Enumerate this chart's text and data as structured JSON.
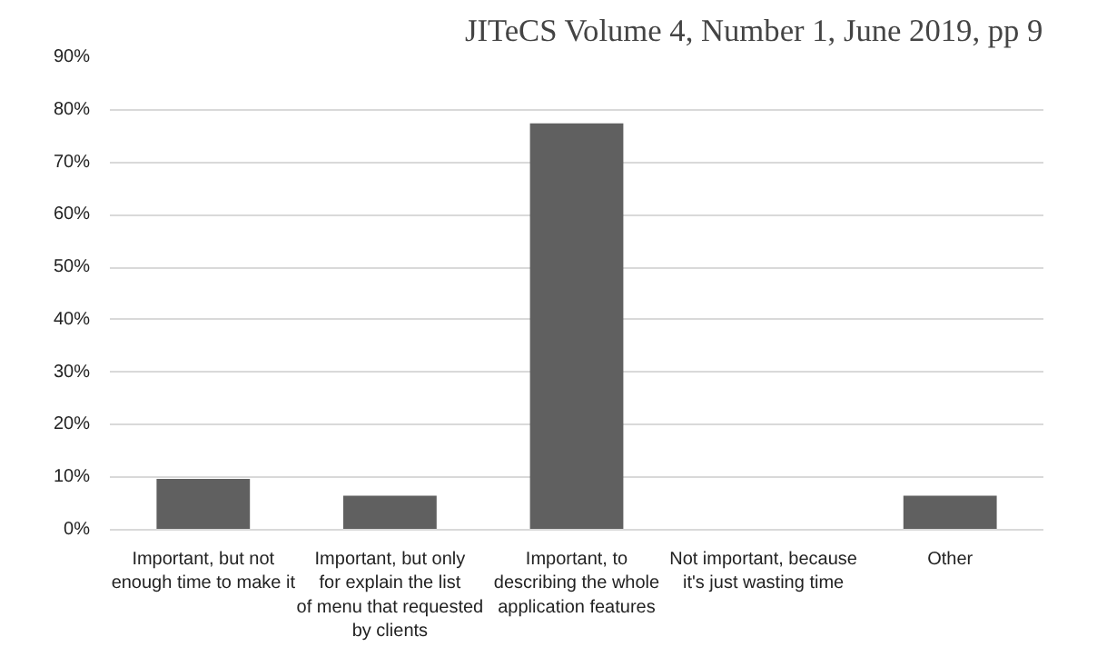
{
  "chart_data": {
    "type": "bar",
    "annotations": [
      "JITeCS Volume 4, Number 1, June 2019, pp 9"
    ],
    "categories": [
      "Important, but not enough time to make it",
      "Important, but only for explain the list of menu that requested by clients",
      "Important, to describing the whole application features",
      "Not important, because it's just wasting time",
      "Other"
    ],
    "values": [
      9.7,
      6.5,
      77.4,
      0,
      6.5
    ],
    "color": "#606060",
    "ylim": [
      0,
      90
    ],
    "yticks": [
      {
        "value": 0,
        "label": "0%"
      },
      {
        "value": 10,
        "label": "10%"
      },
      {
        "value": 20,
        "label": "20%"
      },
      {
        "value": 30,
        "label": "30%"
      },
      {
        "value": 40,
        "label": "40%"
      },
      {
        "value": 50,
        "label": "50%"
      },
      {
        "value": 60,
        "label": "60%"
      },
      {
        "value": 70,
        "label": "70%"
      },
      {
        "value": 80,
        "label": "80%"
      },
      {
        "value": 90,
        "label": "90%"
      }
    ],
    "grid": "y"
  }
}
